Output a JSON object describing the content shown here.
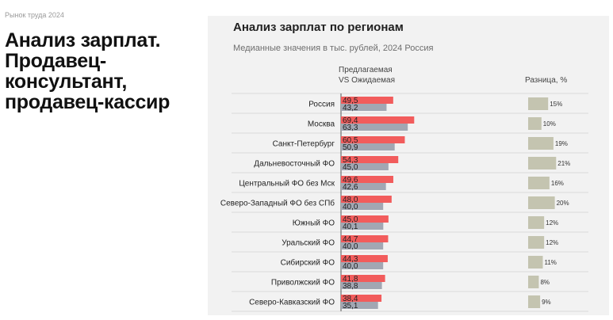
{
  "breadcrumb": "Рынок труда 2024",
  "page_title": "Анализ зарплат. Продавец-консультант, продавец-кассир",
  "colors": {
    "offered": "#f25c5c",
    "expected": "#a2a7b3",
    "diff": "#c4c4b0",
    "panel": "#f2f2f2"
  },
  "chart_data": {
    "type": "bar",
    "title": "Анализ зарплат по регионам",
    "subtitle": "Медианные значения в тыс. рублей, 2024 Россия",
    "header_line1": "Предлагаемая",
    "header_line2": "VS Ожидаемая",
    "diff_header": "Разница, %",
    "categories": [
      "Россия",
      "Москва",
      "Санкт-Петербург",
      "Дальневосточный ФО",
      "Центральный ФО без Мск",
      "Северо-Западный ФО без СПб",
      "Южный ФО",
      "Уральский ФО",
      "Сибирский ФО",
      "Приволжский ФО",
      "Северо-Кавказский ФО"
    ],
    "series": [
      {
        "name": "Предлагаемая",
        "values": [
          49.5,
          69.4,
          60.5,
          54.3,
          49.6,
          48.0,
          45.0,
          44.7,
          44.3,
          41.8,
          38.4
        ],
        "labels": [
          "49,5",
          "69,4",
          "60,5",
          "54,3",
          "49,6",
          "48,0",
          "45,0",
          "44,7",
          "44,3",
          "41,8",
          "38,4"
        ]
      },
      {
        "name": "Ожидаемая",
        "values": [
          43.2,
          63.3,
          50.9,
          45.0,
          42.6,
          40.0,
          40.1,
          40.0,
          40.0,
          38.8,
          35.1
        ],
        "labels": [
          "43,2",
          "63,3",
          "50,9",
          "45,0",
          "42,6",
          "40,0",
          "40,1",
          "40,0",
          "40,0",
          "38,8",
          "35,1"
        ]
      }
    ],
    "difference_percent": [
      15,
      10,
      19,
      21,
      16,
      20,
      12,
      12,
      11,
      8,
      9
    ],
    "difference_labels": [
      "15%",
      "10%",
      "19%",
      "21%",
      "16%",
      "20%",
      "12%",
      "12%",
      "11%",
      "8%",
      "9%"
    ]
  }
}
